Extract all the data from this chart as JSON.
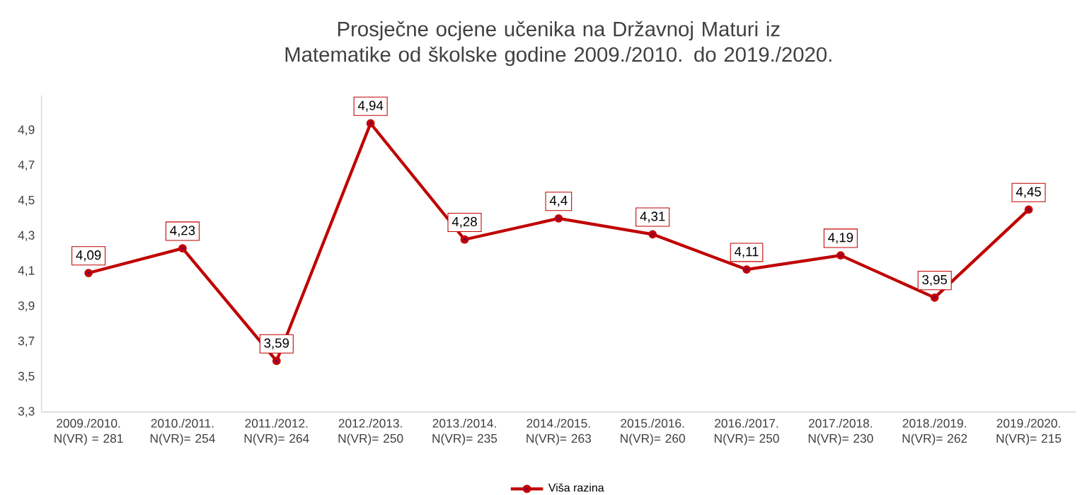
{
  "chart_data": {
    "type": "line",
    "title": "Prosječne ocjene učenika na Državnoj Maturi iz Matematike od školske godine 2009./2010. do 2019./2020.",
    "categories": [
      "2009./2010. N(VR) = 281",
      "2010./2011. N(VR)= 254",
      "2011./2012. N(VR)= 264",
      "2012./2013. N(VR)= 250",
      "2013./2014. N(VR)= 235",
      "2014./2015. N(VR)= 263",
      "2015./2016. N(VR)= 260",
      "2016./2017. N(VR)= 250",
      "2017./2018. N(VR)= 230",
      "2018./2019. N(VR)= 262",
      "2019./2020. N(VR)= 215"
    ],
    "series": [
      {
        "name": "Viša razina",
        "color": "#c00000",
        "values": [
          4.09,
          4.23,
          3.59,
          4.94,
          4.28,
          4.4,
          4.31,
          4.11,
          4.19,
          3.95,
          4.45
        ],
        "value_labels": [
          "4,09",
          "4,23",
          "3,59",
          "4,94",
          "4,28",
          "4,4",
          "4,31",
          "4,11",
          "4,19",
          "3,95",
          "4,45"
        ]
      }
    ],
    "ylim": [
      3.3,
      5.1
    ],
    "yticks": [
      {
        "value": 3.3,
        "label": "3,3"
      },
      {
        "value": 3.5,
        "label": "3,5"
      },
      {
        "value": 3.7,
        "label": "3,7"
      },
      {
        "value": 3.9,
        "label": "3,9"
      },
      {
        "value": 4.1,
        "label": "4,1"
      },
      {
        "value": 4.3,
        "label": "4,3"
      },
      {
        "value": 4.5,
        "label": "4,5"
      },
      {
        "value": 4.7,
        "label": "4,7"
      },
      {
        "value": 4.9,
        "label": "4,9"
      }
    ],
    "grid": false,
    "legend": "bottom",
    "marker": "circle",
    "line_style": "solid"
  }
}
